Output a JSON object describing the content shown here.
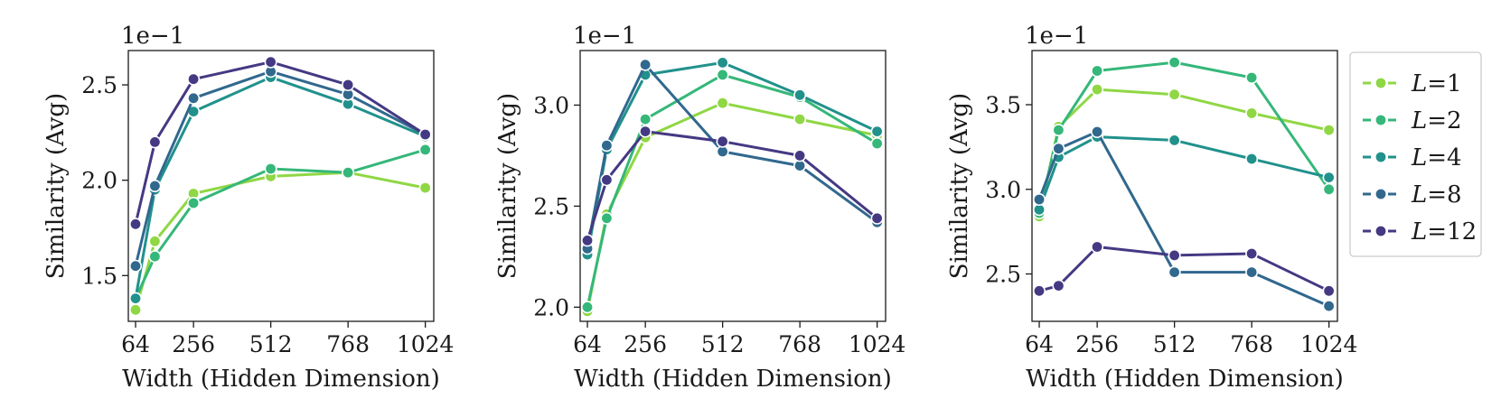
{
  "chart_data": [
    {
      "type": "line",
      "xlabel": "Width (Hidden Dimension)",
      "ylabel": "Similarity (Avg)",
      "y_offset_label": "1e−1",
      "x": [
        64,
        128,
        256,
        512,
        768,
        1024
      ],
      "xticks": [
        64,
        256,
        512,
        768,
        1024
      ],
      "xtick_labels": [
        "64",
        "256",
        "512",
        "768",
        "1024"
      ],
      "yticks": [
        1.5,
        2.0,
        2.5
      ],
      "ytick_labels": [
        "1.5",
        "2.0",
        "2.5"
      ],
      "xlim": [
        40,
        1052
      ],
      "ylim": [
        1.26,
        2.68
      ],
      "series": [
        {
          "name": "L=1",
          "color": "#8fd744",
          "values": [
            1.32,
            1.68,
            1.93,
            2.02,
            2.04,
            1.96
          ]
        },
        {
          "name": "L=2",
          "color": "#35b779",
          "values": [
            1.38,
            1.6,
            1.88,
            2.06,
            2.04,
            2.16
          ]
        },
        {
          "name": "L=4",
          "color": "#21918c",
          "values": [
            1.38,
            1.95,
            2.36,
            2.54,
            2.4,
            2.23
          ]
        },
        {
          "name": "L=8",
          "color": "#31688e",
          "values": [
            1.55,
            1.97,
            2.43,
            2.57,
            2.45,
            2.24
          ]
        },
        {
          "name": "L=12",
          "color": "#443983",
          "values": [
            1.77,
            2.2,
            2.53,
            2.62,
            2.5,
            2.24
          ]
        }
      ]
    },
    {
      "type": "line",
      "xlabel": "Width (Hidden Dimension)",
      "ylabel": "Similarity (Avg)",
      "y_offset_label": "1e−1",
      "x": [
        64,
        128,
        256,
        512,
        768,
        1024
      ],
      "xticks": [
        64,
        256,
        512,
        768,
        1024
      ],
      "xtick_labels": [
        "64",
        "256",
        "512",
        "768",
        "1024"
      ],
      "yticks": [
        2.0,
        2.5,
        3.0
      ],
      "ytick_labels": [
        "2.0",
        "2.5",
        "3.0"
      ],
      "xlim": [
        40,
        1052
      ],
      "ylim": [
        1.93,
        3.27
      ],
      "series": [
        {
          "name": "L=1",
          "color": "#8fd744",
          "values": [
            1.98,
            2.46,
            2.84,
            3.01,
            2.93,
            2.85
          ]
        },
        {
          "name": "L=2",
          "color": "#35b779",
          "values": [
            2.0,
            2.44,
            2.93,
            3.15,
            3.04,
            2.81
          ]
        },
        {
          "name": "L=4",
          "color": "#21918c",
          "values": [
            2.26,
            2.78,
            3.15,
            3.21,
            3.05,
            2.87
          ]
        },
        {
          "name": "L=8",
          "color": "#31688e",
          "values": [
            2.29,
            2.8,
            3.2,
            2.77,
            2.7,
            2.42
          ]
        },
        {
          "name": "L=12",
          "color": "#443983",
          "values": [
            2.33,
            2.63,
            2.87,
            2.82,
            2.75,
            2.44
          ]
        }
      ]
    },
    {
      "type": "line",
      "xlabel": "Width (Hidden Dimension)",
      "ylabel": "Similarity (Avg)",
      "y_offset_label": "1e−1",
      "x": [
        64,
        128,
        256,
        512,
        768,
        1024
      ],
      "xticks": [
        64,
        256,
        512,
        768,
        1024
      ],
      "xtick_labels": [
        "64",
        "256",
        "512",
        "768",
        "1024"
      ],
      "yticks": [
        2.5,
        3.0,
        3.5
      ],
      "ytick_labels": [
        "2.5",
        "3.0",
        "3.5"
      ],
      "xlim": [
        40,
        1052
      ],
      "ylim": [
        2.22,
        3.82
      ],
      "series": [
        {
          "name": "L=1",
          "color": "#8fd744",
          "values": [
            2.84,
            3.37,
            3.59,
            3.56,
            3.45,
            3.35
          ]
        },
        {
          "name": "L=2",
          "color": "#35b779",
          "values": [
            2.86,
            3.35,
            3.7,
            3.75,
            3.66,
            3.0
          ]
        },
        {
          "name": "L=4",
          "color": "#21918c",
          "values": [
            2.88,
            3.19,
            3.31,
            3.29,
            3.18,
            3.07
          ]
        },
        {
          "name": "L=8",
          "color": "#31688e",
          "values": [
            2.94,
            3.24,
            3.34,
            2.51,
            2.51,
            2.31
          ]
        },
        {
          "name": "L=12",
          "color": "#443983",
          "values": [
            2.4,
            2.43,
            2.66,
            2.61,
            2.62,
            2.4
          ]
        }
      ]
    }
  ],
  "legend": {
    "placement": "right",
    "entries": [
      {
        "name": "L=1",
        "var": "L",
        "value": "=1",
        "color": "#8fd744"
      },
      {
        "name": "L=2",
        "var": "L",
        "value": "=2",
        "color": "#35b779"
      },
      {
        "name": "L=4",
        "var": "L",
        "value": "=4",
        "color": "#21918c"
      },
      {
        "name": "L=8",
        "var": "L",
        "value": "=8",
        "color": "#31688e"
      },
      {
        "name": "L=12",
        "var": "L",
        "value": "=12",
        "color": "#443983"
      }
    ]
  }
}
